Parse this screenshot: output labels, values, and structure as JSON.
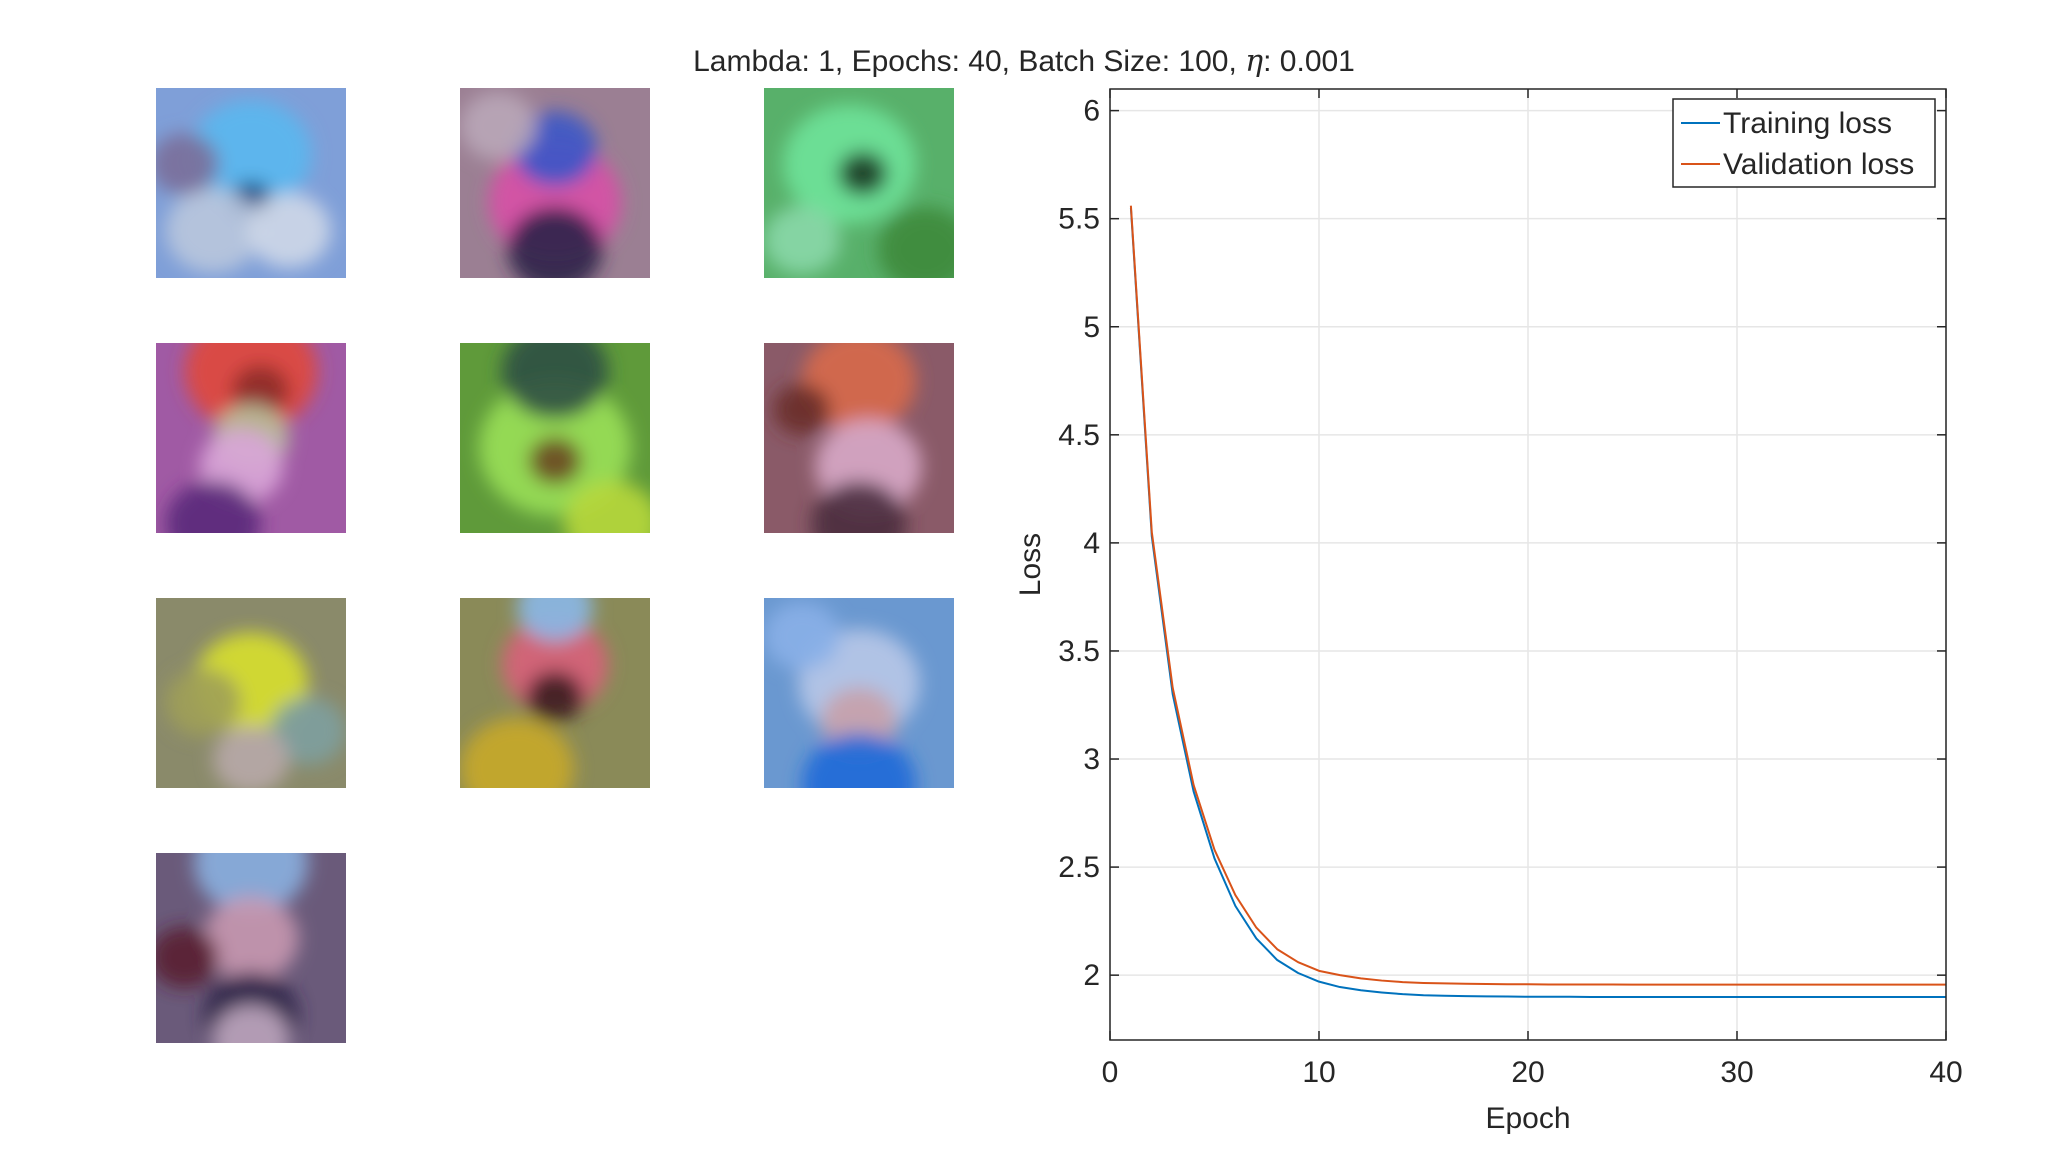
{
  "figure": {
    "title_prefix": "Lambda: 1, Epochs: 40, Batch Size: 100, ",
    "title_eta_symbol": "η",
    "title_suffix": ": 0.001"
  },
  "weight_images": [
    {
      "name": "weight-image-1",
      "base": "#7f9fd8",
      "blobs": [
        [
          "#5ab8f0",
          0.5,
          0.35,
          0.32
        ],
        [
          "#13407a",
          0.5,
          0.6,
          0.12
        ],
        [
          "#b9c6dd",
          0.3,
          0.75,
          0.25
        ],
        [
          "#cfd8e8",
          0.7,
          0.75,
          0.22
        ],
        [
          "#7a6f9a",
          0.15,
          0.4,
          0.18
        ]
      ]
    },
    {
      "name": "weight-image-2",
      "base": "#9b7f93",
      "blobs": [
        [
          "#d84fa6",
          0.5,
          0.6,
          0.35
        ],
        [
          "#3a57c8",
          0.5,
          0.32,
          0.22
        ],
        [
          "#2c2248",
          0.5,
          0.85,
          0.25
        ],
        [
          "#b9a7b8",
          0.2,
          0.2,
          0.2
        ]
      ]
    },
    {
      "name": "weight-image-3",
      "base": "#58b06a",
      "blobs": [
        [
          "#6fe39a",
          0.45,
          0.4,
          0.35
        ],
        [
          "#173a22",
          0.52,
          0.45,
          0.13
        ],
        [
          "#3f8a3c",
          0.85,
          0.85,
          0.25
        ],
        [
          "#8ad8a8",
          0.2,
          0.8,
          0.2
        ]
      ]
    },
    {
      "name": "weight-image-4",
      "base": "#a05aa4",
      "blobs": [
        [
          "#e0483c",
          0.5,
          0.15,
          0.35
        ],
        [
          "#8c2d2a",
          0.55,
          0.25,
          0.15
        ],
        [
          "#b8c09a",
          0.5,
          0.5,
          0.2
        ],
        [
          "#d9a5d8",
          0.45,
          0.65,
          0.22
        ],
        [
          "#5a2a7a",
          0.3,
          0.95,
          0.25
        ]
      ]
    },
    {
      "name": "weight-image-5",
      "base": "#5f9a3a",
      "blobs": [
        [
          "#9ae058",
          0.5,
          0.55,
          0.4
        ],
        [
          "#6a4820",
          0.5,
          0.62,
          0.14
        ],
        [
          "#2f4f44",
          0.5,
          0.15,
          0.28
        ],
        [
          "#b8d83a",
          0.8,
          0.95,
          0.25
        ]
      ]
    },
    {
      "name": "weight-image-6",
      "base": "#8a5a68",
      "blobs": [
        [
          "#d86a4a",
          0.5,
          0.2,
          0.3
        ],
        [
          "#6a2c2a",
          0.2,
          0.35,
          0.15
        ],
        [
          "#d8a8c8",
          0.55,
          0.65,
          0.28
        ],
        [
          "#4a2e3e",
          0.5,
          0.95,
          0.25
        ]
      ]
    },
    {
      "name": "weight-image-7",
      "base": "#8a8a6a",
      "blobs": [
        [
          "#d8e02c",
          0.5,
          0.45,
          0.3
        ],
        [
          "#a0a058",
          0.25,
          0.55,
          0.2
        ],
        [
          "#7ea0a0",
          0.8,
          0.7,
          0.2
        ],
        [
          "#b8a8a8",
          0.5,
          0.85,
          0.2
        ]
      ]
    },
    {
      "name": "weight-image-8",
      "base": "#8a8a58",
      "blobs": [
        [
          "#d8607a",
          0.5,
          0.35,
          0.28
        ],
        [
          "#3a1c1c",
          0.5,
          0.52,
          0.15
        ],
        [
          "#c8a82a",
          0.3,
          0.9,
          0.3
        ],
        [
          "#8ab8e8",
          0.5,
          0.05,
          0.2
        ]
      ]
    },
    {
      "name": "weight-image-9",
      "base": "#6a98d0",
      "blobs": [
        [
          "#b8c8e8",
          0.5,
          0.45,
          0.32
        ],
        [
          "#c8a0a8",
          0.5,
          0.65,
          0.2
        ],
        [
          "#1f6ad8",
          0.5,
          0.98,
          0.3
        ],
        [
          "#8ab0e8",
          0.2,
          0.2,
          0.2
        ]
      ]
    },
    {
      "name": "weight-image-10",
      "base": "#6a5a7a",
      "blobs": [
        [
          "#8ab0e0",
          0.5,
          0.05,
          0.3
        ],
        [
          "#c898b0",
          0.5,
          0.45,
          0.25
        ],
        [
          "#5a1c30",
          0.15,
          0.55,
          0.18
        ],
        [
          "#2c2248",
          0.5,
          0.85,
          0.25
        ],
        [
          "#c0a8c0",
          0.5,
          0.98,
          0.2
        ]
      ]
    }
  ],
  "chart_data": {
    "type": "line",
    "title": "Lambda: 1, Epochs: 40, Batch Size: 100, η: 0.001",
    "xlabel": "Epoch",
    "ylabel": "Loss",
    "xlim": [
      0,
      40
    ],
    "ylim": [
      1.7,
      6.1
    ],
    "xticks": [
      0,
      10,
      20,
      30,
      40
    ],
    "yticks": [
      2,
      2.5,
      3,
      3.5,
      4,
      4.5,
      5,
      5.5,
      6
    ],
    "grid": true,
    "legend_position": "top-right",
    "x": [
      1,
      2,
      3,
      4,
      5,
      6,
      7,
      8,
      9,
      10,
      11,
      12,
      13,
      14,
      15,
      16,
      17,
      18,
      19,
      20,
      21,
      22,
      23,
      24,
      25,
      26,
      27,
      28,
      29,
      30,
      31,
      32,
      33,
      34,
      35,
      36,
      37,
      38,
      39,
      40
    ],
    "series": [
      {
        "name": "Training loss",
        "color": "#0072BD",
        "values": [
          5.55,
          4.03,
          3.3,
          2.85,
          2.54,
          2.32,
          2.17,
          2.07,
          2.01,
          1.97,
          1.945,
          1.93,
          1.92,
          1.912,
          1.907,
          1.905,
          1.903,
          1.902,
          1.901,
          1.9,
          1.9,
          1.9,
          1.899,
          1.899,
          1.899,
          1.899,
          1.899,
          1.899,
          1.899,
          1.899,
          1.899,
          1.899,
          1.899,
          1.899,
          1.899,
          1.899,
          1.899,
          1.899,
          1.899,
          1.899
        ]
      },
      {
        "name": "Validation loss",
        "color": "#D95319",
        "values": [
          5.56,
          4.05,
          3.33,
          2.88,
          2.58,
          2.37,
          2.22,
          2.12,
          2.06,
          2.02,
          2.0,
          1.985,
          1.975,
          1.968,
          1.964,
          1.962,
          1.96,
          1.959,
          1.958,
          1.958,
          1.957,
          1.957,
          1.957,
          1.957,
          1.956,
          1.956,
          1.956,
          1.956,
          1.956,
          1.956,
          1.956,
          1.956,
          1.956,
          1.956,
          1.956,
          1.956,
          1.956,
          1.956,
          1.956,
          1.956
        ]
      }
    ]
  }
}
